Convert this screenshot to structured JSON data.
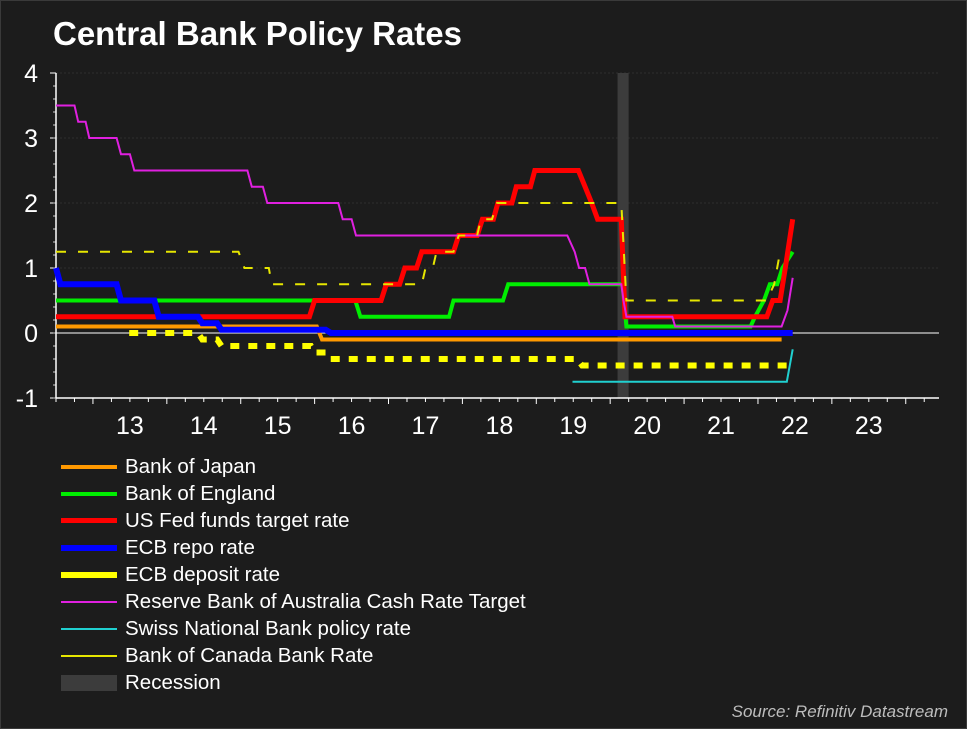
{
  "chart_data": {
    "type": "line",
    "title": "Central Bank Policy Rates",
    "source": "Source: Refinitiv Datastream",
    "xlabel": "",
    "ylabel": "",
    "xlim": [
      2012.5,
      2024.45
    ],
    "ylim": [
      -1,
      4
    ],
    "yticks": [
      "4",
      "3",
      "2",
      "1",
      "0",
      "-1"
    ],
    "ytick_values": [
      4,
      3,
      2,
      1,
      0,
      -1
    ],
    "xticks": [
      "13",
      "14",
      "15",
      "16",
      "17",
      "18",
      "19",
      "20",
      "21",
      "22",
      "23"
    ],
    "xtick_values": [
      2013.5,
      2014.5,
      2015.5,
      2016.5,
      2017.5,
      2018.5,
      2019.5,
      2020.5,
      2021.5,
      2022.5,
      2023.5
    ],
    "grid": true,
    "legend_position": "bottom",
    "recession": {
      "label": "Recession",
      "start": 2020.1,
      "end": 2020.25,
      "color": "#3c3c3c"
    },
    "series": [
      {
        "name": "Bank of Japan",
        "color": "#ff9900",
        "style": "solid",
        "width": 4,
        "points": [
          [
            2012.5,
            0.1
          ],
          [
            2016.03,
            0.1
          ],
          [
            2016.1,
            -0.1
          ],
          [
            2022.32,
            -0.1
          ]
        ]
      },
      {
        "name": "Bank of England",
        "color": "#00ee00",
        "style": "solid",
        "width": 4,
        "points": [
          [
            2012.5,
            0.5
          ],
          [
            2016.55,
            0.5
          ],
          [
            2016.62,
            0.25
          ],
          [
            2017.82,
            0.25
          ],
          [
            2017.88,
            0.5
          ],
          [
            2018.55,
            0.5
          ],
          [
            2018.62,
            0.75
          ],
          [
            2020.17,
            0.75
          ],
          [
            2020.22,
            0.1
          ],
          [
            2021.9,
            0.1
          ],
          [
            2021.96,
            0.25
          ],
          [
            2022.08,
            0.5
          ],
          [
            2022.16,
            0.75
          ],
          [
            2022.26,
            0.75
          ],
          [
            2022.33,
            1.0
          ],
          [
            2022.47,
            1.25
          ]
        ]
      },
      {
        "name": "US Fed funds target rate",
        "color": "#ff0000",
        "style": "solid",
        "width": 5,
        "points": [
          [
            2012.5,
            0.25
          ],
          [
            2015.93,
            0.25
          ],
          [
            2016.0,
            0.5
          ],
          [
            2016.9,
            0.5
          ],
          [
            2016.97,
            0.75
          ],
          [
            2017.15,
            0.75
          ],
          [
            2017.22,
            1.0
          ],
          [
            2017.38,
            1.0
          ],
          [
            2017.45,
            1.25
          ],
          [
            2017.88,
            1.25
          ],
          [
            2017.95,
            1.5
          ],
          [
            2018.2,
            1.5
          ],
          [
            2018.27,
            1.75
          ],
          [
            2018.42,
            1.75
          ],
          [
            2018.48,
            2.0
          ],
          [
            2018.67,
            2.0
          ],
          [
            2018.73,
            2.25
          ],
          [
            2018.92,
            2.25
          ],
          [
            2018.98,
            2.5
          ],
          [
            2019.57,
            2.5
          ],
          [
            2019.66,
            2.25
          ],
          [
            2019.75,
            2.0
          ],
          [
            2019.83,
            1.75
          ],
          [
            2020.15,
            1.75
          ],
          [
            2020.2,
            0.25
          ],
          [
            2022.12,
            0.25
          ],
          [
            2022.2,
            0.5
          ],
          [
            2022.3,
            0.5
          ],
          [
            2022.37,
            1.0
          ],
          [
            2022.47,
            1.75
          ]
        ]
      },
      {
        "name": "ECB repo rate",
        "color": "#0000ff",
        "style": "solid",
        "width": 6,
        "points": [
          [
            2012.5,
            1.0
          ],
          [
            2012.56,
            0.75
          ],
          [
            2013.32,
            0.75
          ],
          [
            2013.38,
            0.5
          ],
          [
            2013.83,
            0.5
          ],
          [
            2013.89,
            0.25
          ],
          [
            2014.42,
            0.25
          ],
          [
            2014.48,
            0.15
          ],
          [
            2014.68,
            0.15
          ],
          [
            2014.74,
            0.05
          ],
          [
            2016.15,
            0.05
          ],
          [
            2016.22,
            0.0
          ],
          [
            2022.47,
            0.0
          ]
        ]
      },
      {
        "name": "ECB deposit rate",
        "color": "#ffff00",
        "style": "dashed",
        "width": 6,
        "points": [
          [
            2013.49,
            0.0
          ],
          [
            2014.42,
            0.0
          ],
          [
            2014.48,
            -0.1
          ],
          [
            2014.68,
            -0.1
          ],
          [
            2014.74,
            -0.2
          ],
          [
            2015.95,
            -0.2
          ],
          [
            2016.0,
            -0.3
          ],
          [
            2016.15,
            -0.3
          ],
          [
            2016.2,
            -0.4
          ],
          [
            2019.55,
            -0.4
          ],
          [
            2019.62,
            -0.5
          ],
          [
            2022.47,
            -0.5
          ]
        ]
      },
      {
        "name": "Reserve Bank of Australia Cash Rate Target",
        "color": "#e020e0",
        "style": "solid",
        "width": 2,
        "points": [
          [
            2012.5,
            3.5
          ],
          [
            2012.75,
            3.5
          ],
          [
            2012.8,
            3.25
          ],
          [
            2012.9,
            3.25
          ],
          [
            2012.95,
            3.0
          ],
          [
            2013.32,
            3.0
          ],
          [
            2013.38,
            2.75
          ],
          [
            2013.5,
            2.75
          ],
          [
            2013.56,
            2.5
          ],
          [
            2015.09,
            2.5
          ],
          [
            2015.15,
            2.25
          ],
          [
            2015.3,
            2.25
          ],
          [
            2015.36,
            2.0
          ],
          [
            2016.32,
            2.0
          ],
          [
            2016.38,
            1.75
          ],
          [
            2016.5,
            1.75
          ],
          [
            2016.56,
            1.5
          ],
          [
            2019.42,
            1.5
          ],
          [
            2019.52,
            1.25
          ],
          [
            2019.58,
            1.0
          ],
          [
            2019.66,
            1.0
          ],
          [
            2019.72,
            0.75
          ],
          [
            2020.15,
            0.75
          ],
          [
            2020.18,
            0.5
          ],
          [
            2020.22,
            0.25
          ],
          [
            2020.84,
            0.25
          ],
          [
            2020.88,
            0.1
          ],
          [
            2022.32,
            0.1
          ],
          [
            2022.4,
            0.35
          ],
          [
            2022.47,
            0.85
          ]
        ]
      },
      {
        "name": "Swiss National Bank policy rate",
        "color": "#20d0d0",
        "style": "solid",
        "width": 2,
        "points": [
          [
            2019.49,
            -0.75
          ],
          [
            2022.39,
            -0.75
          ],
          [
            2022.47,
            -0.25
          ]
        ]
      },
      {
        "name": "Bank of Canada Bank Rate",
        "color": "#e6e600",
        "style": "dashed-thin",
        "width": 2,
        "points": [
          [
            2012.5,
            1.25
          ],
          [
            2014.97,
            1.25
          ],
          [
            2015.05,
            1.0
          ],
          [
            2015.38,
            1.0
          ],
          [
            2015.42,
            0.75
          ],
          [
            2017.45,
            0.75
          ],
          [
            2017.5,
            1.0
          ],
          [
            2017.6,
            1.0
          ],
          [
            2017.65,
            1.25
          ],
          [
            2017.88,
            1.25
          ],
          [
            2017.95,
            1.5
          ],
          [
            2018.2,
            1.5
          ],
          [
            2018.25,
            1.75
          ],
          [
            2018.4,
            1.75
          ],
          [
            2018.47,
            2.0
          ],
          [
            2020.15,
            2.0
          ],
          [
            2020.22,
            0.5
          ],
          [
            2022.12,
            0.5
          ],
          [
            2022.22,
            0.75
          ],
          [
            2022.3,
            1.25
          ]
        ]
      }
    ]
  }
}
